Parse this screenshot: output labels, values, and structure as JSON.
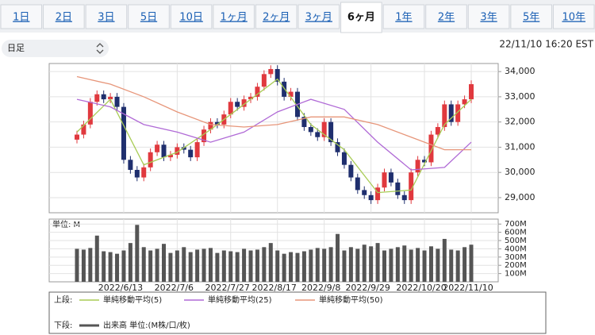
{
  "tabs": [
    "1日",
    "2日",
    "3日",
    "5日",
    "10日",
    "1ヶ月",
    "2ヶ月",
    "3ヶ月",
    "6ヶ月",
    "1年",
    "2年",
    "3年",
    "5年",
    "10年"
  ],
  "active_tab": 8,
  "selector": "日足",
  "timestamp": "22/11/10 16:20 EST",
  "chart_data": {
    "type": "candlestick",
    "up_color": "#e0393e",
    "down_color": "#1f2f6e",
    "open": [
      31300,
      31500,
      31900,
      32800,
      33100,
      32900,
      33000,
      32600,
      30500,
      30100,
      29800,
      30200,
      30800,
      31100,
      30600,
      30700,
      31000,
      30900,
      30600,
      31200,
      31700,
      32000,
      31900,
      32300,
      32800,
      32600,
      32900,
      33000,
      33400,
      33900,
      34100,
      33600,
      33000,
      33200,
      32200,
      31800,
      31600,
      31400,
      32000,
      31200,
      30800,
      30300,
      29800,
      29300,
      29100,
      28900,
      29400,
      30000,
      29600,
      29100,
      28900,
      30000,
      30500,
      30400,
      31500,
      31800,
      32700,
      32000,
      32700,
      32900
    ],
    "high": [
      31650,
      32050,
      32950,
      33250,
      33250,
      33150,
      33150,
      32750,
      30650,
      30250,
      30350,
      30950,
      31250,
      31250,
      30850,
      31150,
      31150,
      31050,
      31350,
      31850,
      32150,
      32150,
      32450,
      32950,
      32950,
      33050,
      33150,
      33550,
      34050,
      34250,
      34250,
      33750,
      33350,
      33350,
      32350,
      31950,
      31750,
      32150,
      32150,
      31350,
      30950,
      30450,
      29950,
      29450,
      29250,
      29550,
      30150,
      30150,
      29750,
      29250,
      30150,
      30650,
      30650,
      31650,
      31950,
      32850,
      32850,
      32850,
      33050,
      33650
    ],
    "low": [
      31150,
      31350,
      31750,
      32650,
      32750,
      32750,
      32450,
      30350,
      29950,
      29650,
      29650,
      30050,
      30650,
      30450,
      30450,
      30550,
      30750,
      30450,
      30450,
      31050,
      31550,
      31750,
      31750,
      32150,
      32450,
      32450,
      32750,
      32850,
      33250,
      33750,
      33450,
      32850,
      32850,
      32050,
      31650,
      31450,
      31250,
      31250,
      31050,
      30650,
      30150,
      29650,
      29150,
      28950,
      28750,
      28750,
      29250,
      29450,
      28950,
      28750,
      28750,
      29850,
      30250,
      30250,
      31350,
      31650,
      31850,
      31850,
      32550,
      32750
    ],
    "close": [
      31500,
      31900,
      32800,
      33100,
      32900,
      33000,
      32600,
      30500,
      30100,
      29800,
      30200,
      30800,
      31100,
      30600,
      30700,
      31000,
      30900,
      30600,
      31200,
      31700,
      32000,
      31900,
      32300,
      32800,
      32600,
      32900,
      33000,
      33400,
      33900,
      34100,
      33600,
      33000,
      33200,
      32200,
      31800,
      31600,
      31400,
      32000,
      31200,
      30800,
      30300,
      29800,
      29300,
      29100,
      28900,
      29400,
      30000,
      29600,
      29100,
      28900,
      30000,
      30500,
      30400,
      31500,
      31800,
      32700,
      32000,
      32700,
      32900,
      33500
    ],
    "ylim": [
      28400,
      34320
    ],
    "yticks": [
      {
        "value": 29000,
        "label": "29,000"
      },
      {
        "value": 30000,
        "label": "30,000"
      },
      {
        "value": 31000,
        "label": "31,000"
      },
      {
        "value": 32000,
        "label": "32,000"
      },
      {
        "value": 33000,
        "label": "33,000"
      },
      {
        "value": 34000,
        "label": "34,000"
      }
    ],
    "xticks": [
      {
        "value": 7,
        "label": "2022/6/13"
      },
      {
        "value": 15,
        "label": "2022/7/6"
      },
      {
        "value": 23,
        "label": "2022/7/27"
      },
      {
        "value": 30,
        "label": "2022/8/17"
      },
      {
        "value": 37,
        "label": "2022/9/8"
      },
      {
        "value": 44,
        "label": "2022/9/29"
      },
      {
        "value": 52,
        "label": "2022/10/20"
      },
      {
        "value": 59,
        "label": "2022/11/10"
      }
    ],
    "grid": true,
    "upper_label": "上段:",
    "lower_label": "下段:",
    "series": [
      {
        "name": "単純移動平均(5)",
        "color": "#a8cc55",
        "x": [
          0,
          5,
          10,
          15,
          20,
          25,
          30,
          35,
          40,
          45,
          50,
          55,
          59
        ],
        "values": [
          31600,
          32900,
          30300,
          30800,
          31700,
          32700,
          33700,
          31900,
          30900,
          29200,
          29300,
          31900,
          32900
        ]
      },
      {
        "name": "単純移動平均(25)",
        "color": "#b06ad6",
        "x": [
          0,
          5,
          10,
          15,
          20,
          25,
          30,
          35,
          40,
          45,
          50,
          55,
          59
        ],
        "values": [
          32900,
          32600,
          31900,
          31600,
          31200,
          31600,
          32400,
          32900,
          32500,
          31200,
          30100,
          30200,
          31200
        ]
      },
      {
        "name": "単純移動平均(50)",
        "color": "#e7967a",
        "x": [
          0,
          5,
          10,
          15,
          20,
          25,
          30,
          35,
          40,
          45,
          50,
          55,
          59
        ],
        "values": [
          33800,
          33500,
          33000,
          32400,
          31900,
          31800,
          31900,
          32200,
          32200,
          31900,
          31400,
          30900,
          30900
        ]
      }
    ],
    "volume": {
      "name": "出来高 単位:(M株/口/枚)",
      "unit_label": "単位: M",
      "color": "#555555",
      "values": [
        400,
        390,
        410,
        560,
        370,
        360,
        340,
        380,
        470,
        690,
        420,
        380,
        400,
        460,
        350,
        380,
        420,
        360,
        390,
        400,
        410,
        350,
        380,
        370,
        360,
        400,
        380,
        390,
        420,
        470,
        380,
        340,
        360,
        350,
        370,
        390,
        410,
        400,
        420,
        580,
        380,
        420,
        400,
        450,
        430,
        470,
        380,
        400,
        420,
        440,
        390,
        410,
        380,
        430,
        400,
        520,
        390,
        380,
        420,
        450
      ],
      "ylim": [
        0,
        760
      ],
      "yticks": [
        {
          "value": 100,
          "label": "100M"
        },
        {
          "value": 200,
          "label": "200M"
        },
        {
          "value": 300,
          "label": "300M"
        },
        {
          "value": 400,
          "label": "400M"
        },
        {
          "value": 500,
          "label": "500M"
        },
        {
          "value": 600,
          "label": "600M"
        },
        {
          "value": 700,
          "label": "700M"
        }
      ]
    }
  }
}
